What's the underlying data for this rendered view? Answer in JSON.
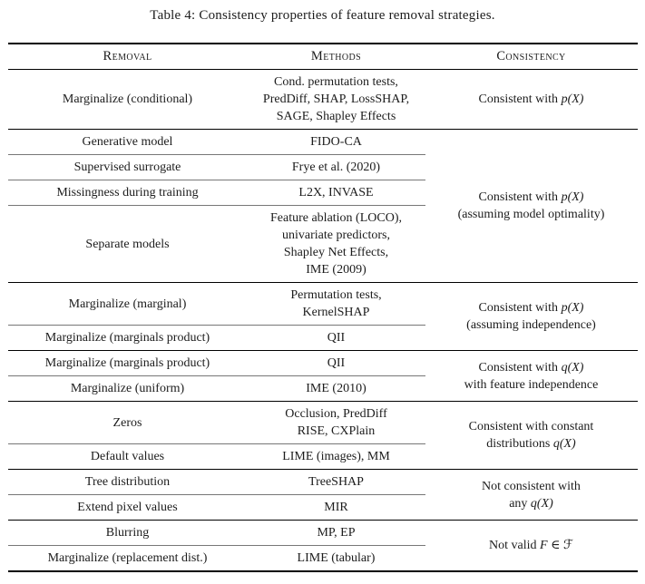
{
  "colors": {
    "background": "#ffffff",
    "text": "#1c1c1c",
    "rule": "#000000",
    "partial_rule": "#777777"
  },
  "title": "Table 4: Consistency properties of feature removal strategies.",
  "table": {
    "headers": [
      "Removal",
      "Methods",
      "Consistency"
    ],
    "groups": [
      {
        "consistency": [
          "Consistent with *p(X)*"
        ],
        "rows": [
          {
            "removal": "Marginalize (conditional)",
            "methods": [
              "Cond. permutation tests,",
              "PredDiff, SHAP, LossSHAP,",
              "SAGE, Shapley Effects"
            ]
          }
        ]
      },
      {
        "consistency": [
          "Consistent with *p(X)*",
          "(assuming model optimality)"
        ],
        "rows": [
          {
            "removal": "Generative model",
            "methods": [
              "FIDO-CA"
            ]
          },
          {
            "removal": "Supervised surrogate",
            "methods": [
              "Frye et al. (2020)"
            ]
          },
          {
            "removal": "Missingness during training",
            "methods": [
              "L2X, INVASE"
            ]
          },
          {
            "removal": "Separate models",
            "methods": [
              "Feature ablation (LOCO),",
              "univariate predictors,",
              "Shapley Net Effects,",
              "IME (2009)"
            ]
          }
        ]
      },
      {
        "consistency": [
          "Consistent with *p(X)*",
          "(assuming independence)"
        ],
        "rows": [
          {
            "removal": "Marginalize (marginal)",
            "methods": [
              "Permutation tests,",
              "KernelSHAP"
            ]
          },
          {
            "removal": "Marginalize (marginals product)",
            "methods": [
              "QII"
            ]
          }
        ]
      },
      {
        "consistency": [
          "Consistent with *q(X)*",
          "with feature independence"
        ],
        "rows": [
          {
            "removal": "Marginalize (marginals product)",
            "methods": [
              "QII"
            ]
          },
          {
            "removal": "Marginalize (uniform)",
            "methods": [
              "IME (2010)"
            ]
          }
        ]
      },
      {
        "consistency": [
          "Consistent with constant",
          "distributions *q(X)*"
        ],
        "rows": [
          {
            "removal": "Zeros",
            "methods": [
              "Occlusion, PredDiff",
              "RISE, CXPlain"
            ]
          },
          {
            "removal": "Default values",
            "methods": [
              "LIME (images), MM"
            ]
          }
        ]
      },
      {
        "consistency": [
          "Not consistent with",
          "any *q(X)*"
        ],
        "rows": [
          {
            "removal": "Tree distribution",
            "methods": [
              "TreeSHAP"
            ]
          },
          {
            "removal": "Extend pixel values",
            "methods": [
              "MIR"
            ]
          }
        ]
      },
      {
        "consistency": [
          "Not valid *F* ∈ ℱ"
        ],
        "rows": [
          {
            "removal": "Blurring",
            "methods": [
              "MP, EP"
            ]
          },
          {
            "removal": "Marginalize (replacement dist.)",
            "methods": [
              "LIME (tabular)"
            ]
          }
        ]
      }
    ]
  }
}
